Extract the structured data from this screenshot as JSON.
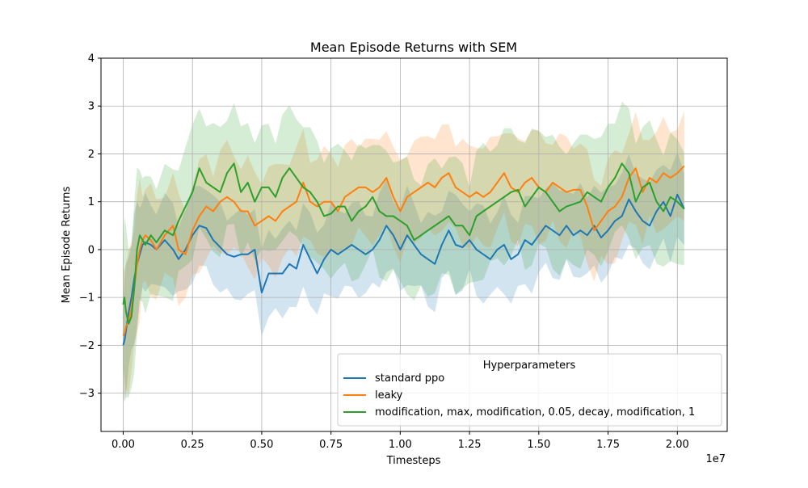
{
  "chart_data": {
    "type": "line",
    "title": "Mean Episode Returns with SEM",
    "xlabel": "Timesteps",
    "ylabel": "Mean Episode Returns",
    "x_offset_label": "1e7",
    "xlim": [
      -0.08,
      2.18
    ],
    "ylim": [
      -3.8,
      4.0
    ],
    "x_ticks": [
      0.0,
      0.25,
      0.5,
      0.75,
      1.0,
      1.25,
      1.5,
      1.75,
      2.0
    ],
    "x_tick_labels": [
      "0.00",
      "0.25",
      "0.50",
      "0.75",
      "1.00",
      "1.25",
      "1.50",
      "1.75",
      "2.00"
    ],
    "y_ticks": [
      -3,
      -2,
      -1,
      0,
      1,
      2,
      3,
      4
    ],
    "y_tick_labels": [
      "−3",
      "−2",
      "−1",
      "0",
      "1",
      "2",
      "3",
      "4"
    ],
    "grid": true,
    "legend": {
      "title": "Hyperparameters",
      "placement": "lower-right"
    },
    "x": [
      0.0,
      0.005,
      0.01,
      0.02,
      0.03,
      0.04,
      0.05,
      0.06,
      0.07,
      0.08,
      0.1,
      0.12,
      0.15,
      0.18,
      0.2,
      0.225,
      0.25,
      0.275,
      0.3,
      0.325,
      0.35,
      0.375,
      0.4,
      0.425,
      0.45,
      0.475,
      0.5,
      0.525,
      0.55,
      0.575,
      0.6,
      0.625,
      0.65,
      0.675,
      0.7,
      0.725,
      0.75,
      0.775,
      0.8,
      0.825,
      0.85,
      0.875,
      0.9,
      0.925,
      0.95,
      0.975,
      1.0,
      1.025,
      1.05,
      1.075,
      1.1,
      1.125,
      1.15,
      1.175,
      1.2,
      1.225,
      1.25,
      1.275,
      1.3,
      1.325,
      1.35,
      1.375,
      1.4,
      1.425,
      1.45,
      1.475,
      1.5,
      1.525,
      1.55,
      1.575,
      1.6,
      1.625,
      1.65,
      1.675,
      1.7,
      1.725,
      1.75,
      1.775,
      1.8,
      1.825,
      1.85,
      1.875,
      1.9,
      1.925,
      1.95,
      1.975,
      2.0,
      2.025
    ],
    "series": [
      {
        "name": "standard ppo",
        "color": "#1f77b4",
        "values": [
          -2.0,
          -1.9,
          -1.7,
          -1.3,
          -1.0,
          -0.6,
          -0.3,
          -0.1,
          0.1,
          0.15,
          0.1,
          0.0,
          0.2,
          0.0,
          -0.2,
          0.0,
          0.3,
          0.5,
          0.45,
          0.2,
          0.05,
          -0.1,
          -0.15,
          -0.1,
          -0.1,
          0.0,
          -0.9,
          -0.5,
          -0.5,
          -0.5,
          -0.3,
          -0.4,
          0.1,
          -0.2,
          -0.5,
          -0.2,
          0.0,
          -0.1,
          0.0,
          0.1,
          0.0,
          -0.1,
          0.0,
          0.2,
          0.5,
          0.3,
          0.0,
          0.3,
          0.1,
          -0.1,
          -0.2,
          -0.3,
          0.1,
          0.4,
          0.1,
          0.05,
          0.2,
          0.0,
          -0.1,
          -0.2,
          0.0,
          0.1,
          -0.2,
          -0.1,
          0.2,
          0.1,
          0.3,
          0.5,
          0.4,
          0.3,
          0.5,
          0.3,
          0.4,
          0.3,
          0.5,
          0.25,
          0.4,
          0.6,
          0.7,
          1.05,
          0.8,
          0.6,
          0.5,
          0.8,
          1.0,
          0.7,
          1.15,
          0.85
        ]
      },
      {
        "name": "leaky",
        "color": "#ff7f0e",
        "values": [
          -1.8,
          -1.75,
          -1.6,
          -1.5,
          -1.2,
          -0.8,
          -0.3,
          0.0,
          0.2,
          0.3,
          0.2,
          0.0,
          0.3,
          0.5,
          0.0,
          -0.1,
          0.4,
          0.7,
          0.9,
          0.8,
          1.0,
          1.1,
          1.0,
          0.8,
          0.8,
          0.5,
          0.6,
          0.7,
          0.6,
          0.8,
          0.9,
          1.0,
          1.4,
          1.0,
          0.9,
          1.0,
          1.0,
          0.8,
          1.1,
          1.2,
          1.3,
          1.3,
          1.2,
          1.3,
          1.5,
          1.1,
          0.8,
          1.1,
          1.2,
          1.3,
          1.4,
          1.3,
          1.5,
          1.6,
          1.3,
          1.2,
          1.1,
          1.2,
          1.1,
          1.2,
          1.4,
          1.6,
          1.3,
          1.2,
          1.4,
          1.5,
          1.3,
          1.2,
          1.4,
          1.3,
          1.2,
          1.25,
          1.25,
          0.9,
          0.4,
          0.6,
          0.8,
          0.9,
          1.1,
          1.5,
          1.7,
          1.2,
          1.5,
          1.4,
          1.6,
          1.5,
          1.6,
          1.75
        ]
      },
      {
        "name": "modification, max, modification, 0.05, decay, modification, 1",
        "color": "#2ca02c",
        "values": [
          -1.15,
          -1.0,
          -1.3,
          -1.55,
          -1.4,
          -0.8,
          0.0,
          0.3,
          0.2,
          0.1,
          0.3,
          0.15,
          0.4,
          0.3,
          0.6,
          0.9,
          1.2,
          1.7,
          1.4,
          1.3,
          1.2,
          1.6,
          1.8,
          1.2,
          1.4,
          1.0,
          1.3,
          1.3,
          1.1,
          1.5,
          1.7,
          1.5,
          1.3,
          1.2,
          1.0,
          0.7,
          0.75,
          0.9,
          0.9,
          0.6,
          0.8,
          0.9,
          1.1,
          0.8,
          0.7,
          0.7,
          0.6,
          0.5,
          0.2,
          0.3,
          0.4,
          0.5,
          0.6,
          0.7,
          0.5,
          0.5,
          0.3,
          0.7,
          0.8,
          0.9,
          1.0,
          1.1,
          1.2,
          1.25,
          0.9,
          1.1,
          1.3,
          1.2,
          1.0,
          0.8,
          0.9,
          0.95,
          1.0,
          1.2,
          1.1,
          1.0,
          1.3,
          1.5,
          1.8,
          1.6,
          1.0,
          1.3,
          1.4,
          1.0,
          0.8,
          1.1,
          1.0,
          0.85
        ]
      }
    ]
  }
}
